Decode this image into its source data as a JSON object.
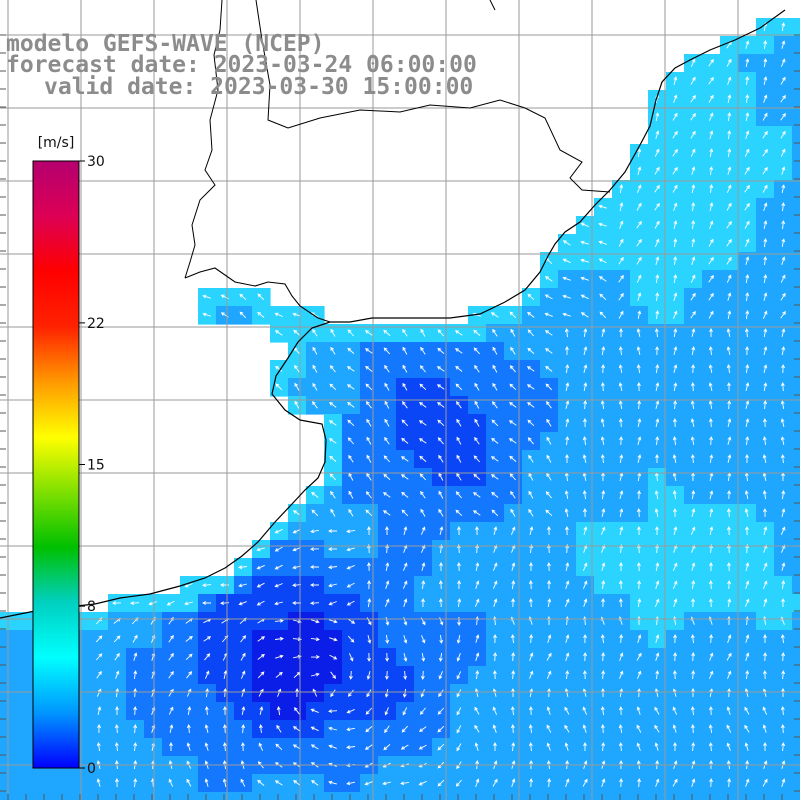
{
  "map": {
    "title_lines": [
      "modelo GEFS-WAVE (NCEP)",
      "forecast date: 2023-03-24 06:00:00",
      "valid date: 2023-03-30 15:00:00"
    ],
    "colorbar": {
      "unit": "[m/s]",
      "min": 0,
      "max": 30,
      "ticks": [
        {
          "value": 30,
          "label": "30"
        },
        {
          "value": 22,
          "label": "22"
        },
        {
          "value": 15,
          "label": "15"
        },
        {
          "value": 8,
          "label": "8"
        },
        {
          "value": 0,
          "label": "0"
        }
      ],
      "colors": [
        "#0000ff",
        "#0096ff",
        "#00ffff",
        "#00d0c0",
        "#00c000",
        "#80e000",
        "#ffff00",
        "#ff9900",
        "#ff2200",
        "#ff0000",
        "#dd0055",
        "#b4006e"
      ]
    },
    "field_colors": {
      "very_low": "#0a1ee8",
      "low": "#0a46f5",
      "mid": "#1478ff",
      "high": "#1fa6ff",
      "coast": "#2ad4ff"
    },
    "land_color": "#ffffff",
    "grid_color": "#9a9a9a",
    "coastline_color": "#000000",
    "arrow_color": "#ffffff"
  }
}
